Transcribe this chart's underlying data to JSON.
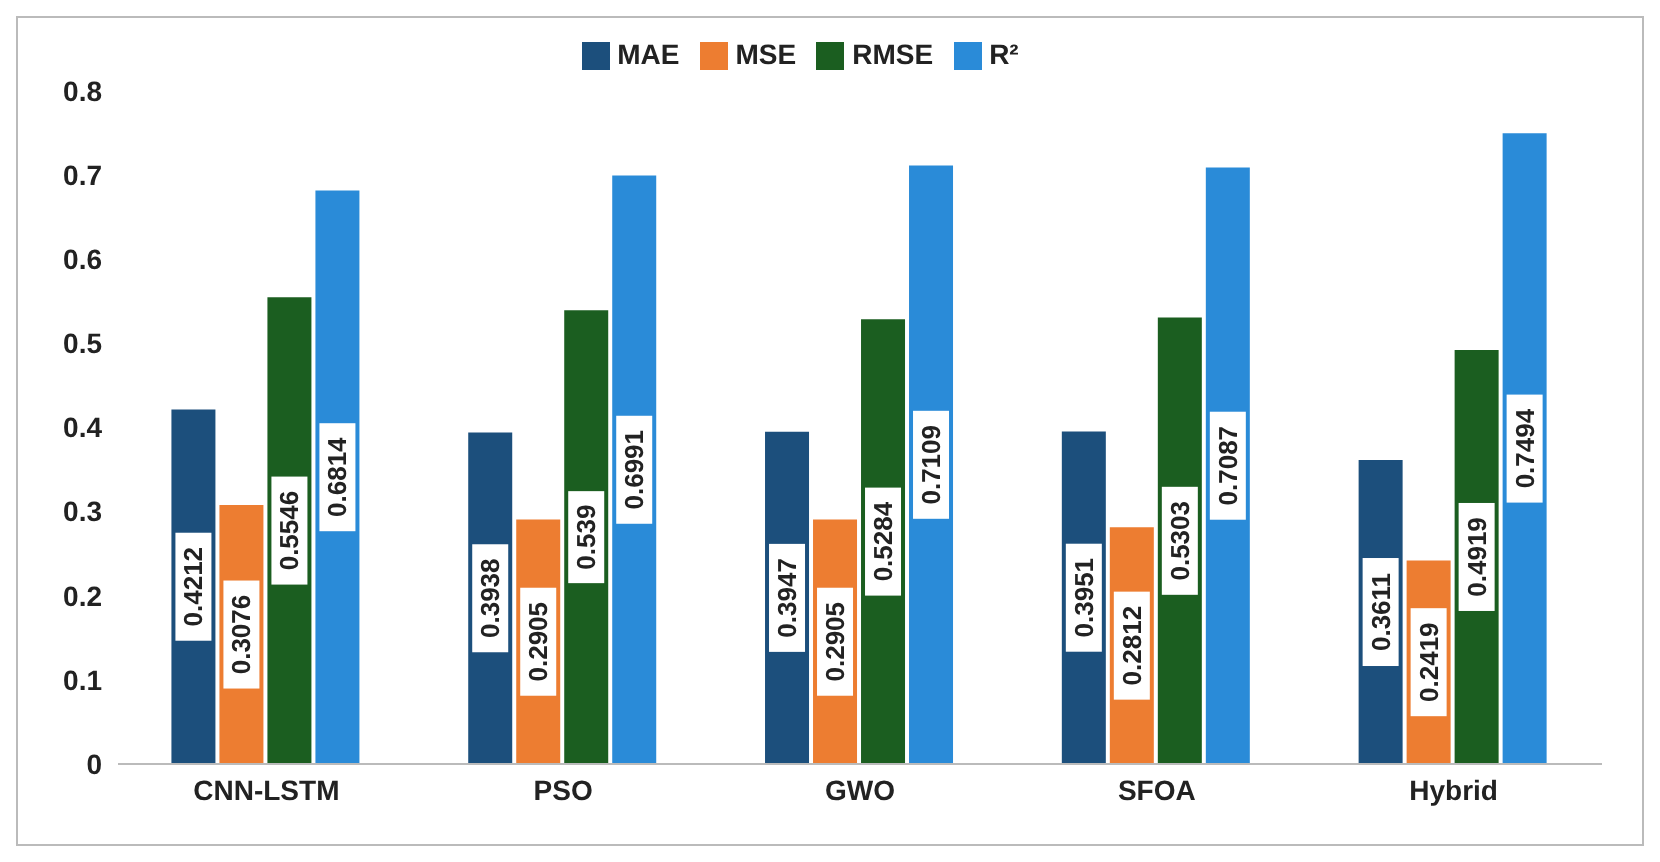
{
  "chart_data": {
    "type": "bar",
    "categories": [
      "CNN-LSTM",
      "PSO",
      "GWO",
      "SFOA",
      "Hybrid"
    ],
    "series": [
      {
        "name": "MAE",
        "color": "#1c4f7c",
        "values": [
          0.4212,
          0.3938,
          0.3947,
          0.3951,
          0.3611
        ]
      },
      {
        "name": "MSE",
        "color": "#ed7d31",
        "values": [
          0.3076,
          0.2905,
          0.2905,
          0.2812,
          0.2419
        ]
      },
      {
        "name": "RMSE",
        "color": "#1b5e20",
        "values": [
          0.5546,
          0.539,
          0.5284,
          0.5303,
          0.4919
        ]
      },
      {
        "name": "R²",
        "color": "#2a8bd8",
        "values": [
          0.6814,
          0.6991,
          0.7109,
          0.7087,
          0.7494
        ]
      }
    ],
    "ylim": [
      0,
      0.8
    ],
    "yticks": [
      0,
      0.1,
      0.2,
      0.3,
      0.4,
      0.5,
      0.6,
      0.7,
      0.8
    ],
    "grid": false,
    "legend": "top",
    "data_labels": true
  }
}
